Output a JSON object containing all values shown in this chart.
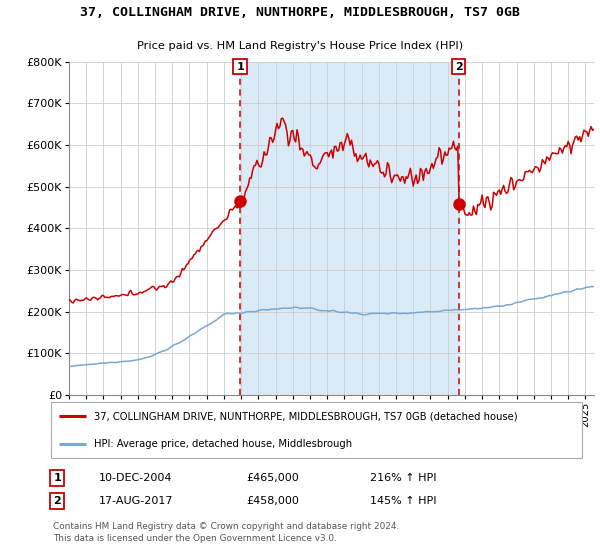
{
  "title": "37, COLLINGHAM DRIVE, NUNTHORPE, MIDDLESBROUGH, TS7 0GB",
  "subtitle": "Price paid vs. HM Land Registry's House Price Index (HPI)",
  "legend_line1": "37, COLLINGHAM DRIVE, NUNTHORPE, MIDDLESBROUGH, TS7 0GB (detached house)",
  "legend_line2": "HPI: Average price, detached house, Middlesbrough",
  "annotation1_label": "1",
  "annotation1_date": "10-DEC-2004",
  "annotation1_price": "£465,000",
  "annotation1_hpi": "216% ↑ HPI",
  "annotation2_label": "2",
  "annotation2_date": "17-AUG-2017",
  "annotation2_price": "£458,000",
  "annotation2_hpi": "145% ↑ HPI",
  "footer1": "Contains HM Land Registry data © Crown copyright and database right 2024.",
  "footer2": "This data is licensed under the Open Government Licence v3.0.",
  "red_color": "#cc0000",
  "blue_color": "#7aa8d2",
  "shade_color": "#daeaf7",
  "dashed_color": "#cc0000",
  "background_color": "#ffffff",
  "grid_color": "#cccccc",
  "ylim": [
    0,
    800000
  ],
  "yticks": [
    0,
    100000,
    200000,
    300000,
    400000,
    500000,
    600000,
    700000,
    800000
  ],
  "ytick_labels": [
    "£0",
    "£100K",
    "£200K",
    "£300K",
    "£400K",
    "£500K",
    "£600K",
    "£700K",
    "£800K"
  ],
  "sale1_x": 2004.94,
  "sale1_y": 465000,
  "sale2_x": 2017.63,
  "sale2_y": 458000,
  "xmin": 1995.0,
  "xmax": 2025.5
}
